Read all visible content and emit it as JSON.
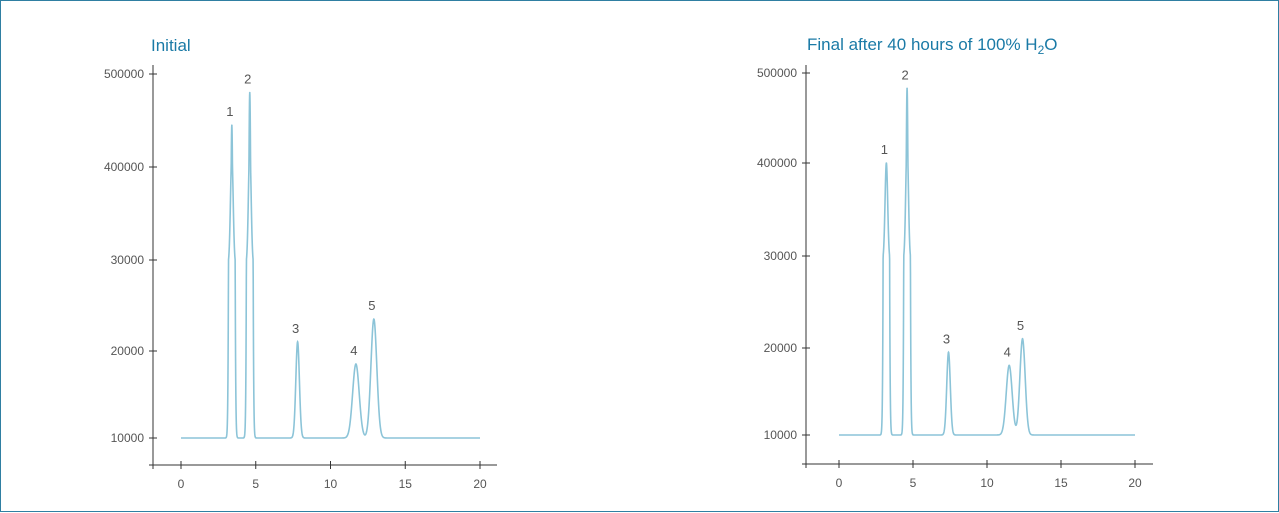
{
  "chart_data": [
    {
      "type": "line",
      "title": "Initial",
      "title_parts": {
        "main": "Initial",
        "sub": "",
        "tail": ""
      },
      "xlabel": "",
      "ylabel": "",
      "x_ticks": [
        "0",
        "5",
        "10",
        "15",
        "20"
      ],
      "y_ticks": [
        "10000",
        "20000",
        "30000",
        "400000",
        "500000"
      ],
      "xlim": [
        -2,
        22
      ],
      "ylim": [
        7000,
        506000
      ],
      "grid": false,
      "colors": {
        "trace": "#8cc4d8",
        "title": "#1a7aa6",
        "axis": "#333333"
      },
      "baseline": 10000,
      "peaks": [
        {
          "label": "1",
          "x": 3.4,
          "height": 445000,
          "width": 0.09
        },
        {
          "label": "2",
          "x": 4.6,
          "height": 480000,
          "width": 0.09
        },
        {
          "label": "3",
          "x": 7.8,
          "height": 21000,
          "width": 0.12
        },
        {
          "label": "4",
          "x": 11.7,
          "height": 18500,
          "width": 0.22
        },
        {
          "label": "5",
          "x": 12.9,
          "height": 23500,
          "width": 0.2
        }
      ]
    },
    {
      "type": "line",
      "title": "Final after 40 hours of 100% H2O",
      "title_parts": {
        "main": "Final after 40 hours of 100% H",
        "sub": "2",
        "tail": "O"
      },
      "xlabel": "",
      "ylabel": "",
      "x_ticks": [
        "0",
        "5",
        "10",
        "15",
        "20"
      ],
      "y_ticks": [
        "10000",
        "20000",
        "30000",
        "400000",
        "500000"
      ],
      "xlim": [
        -2,
        21
      ],
      "ylim": [
        7000,
        503000
      ],
      "grid": false,
      "colors": {
        "trace": "#8cc4d8",
        "title": "#1a7aa6",
        "axis": "#333333"
      },
      "baseline": 10000,
      "peaks": [
        {
          "label": "1",
          "x": 3.2,
          "height": 400000,
          "width": 0.09
        },
        {
          "label": "2",
          "x": 4.6,
          "height": 483000,
          "width": 0.09
        },
        {
          "label": "3",
          "x": 7.4,
          "height": 19500,
          "width": 0.12
        },
        {
          "label": "4",
          "x": 11.5,
          "height": 18000,
          "width": 0.2
        },
        {
          "label": "5",
          "x": 12.4,
          "height": 21000,
          "width": 0.18
        }
      ]
    }
  ]
}
